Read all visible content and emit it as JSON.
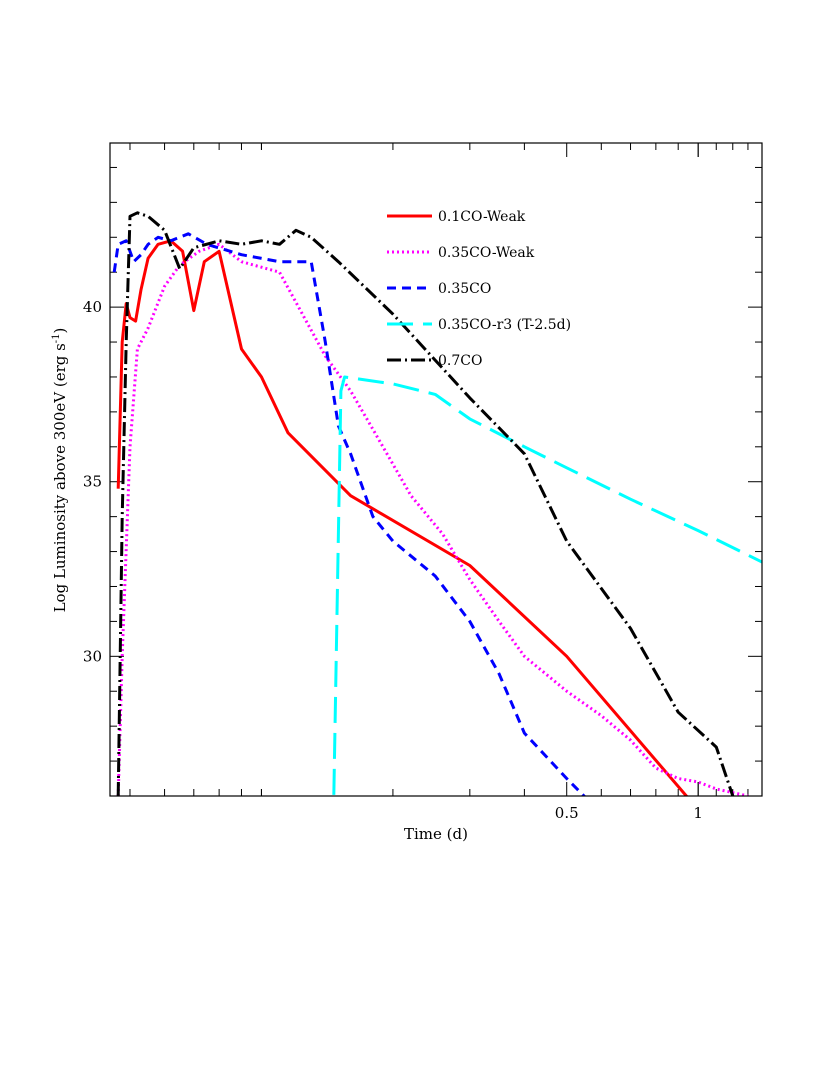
{
  "chart_data": {
    "type": "line",
    "title": "",
    "xlabel": "Time (d)",
    "ylabel": "Log Luminosity above 300eV (erg s",
    "ylabel_sup": "-1",
    "ylabel_end": ")",
    "x_scale": "log",
    "xlim": [
      0.045,
      1.4
    ],
    "ylim": [
      26,
      44.7
    ],
    "x_ticks": [
      {
        "value": 0.5,
        "label": "0.5"
      },
      {
        "value": 1,
        "label": "1"
      }
    ],
    "y_ticks": [
      {
        "value": 30,
        "label": "30"
      },
      {
        "value": 35,
        "label": "35"
      },
      {
        "value": 40,
        "label": "40"
      }
    ],
    "grid": false,
    "legend_position": "top-right",
    "series": [
      {
        "name": "0.1CO-Weak",
        "color": "#ff0000",
        "style": "solid",
        "x": [
          0.047,
          0.048,
          0.049,
          0.05,
          0.0515,
          0.053,
          0.055,
          0.058,
          0.062,
          0.066,
          0.07,
          0.074,
          0.08,
          0.09,
          0.1,
          0.115,
          0.16,
          0.3,
          0.5,
          1.1
        ],
        "y": [
          34.8,
          39.0,
          40.1,
          39.7,
          39.6,
          40.5,
          41.4,
          41.8,
          41.9,
          41.6,
          39.9,
          41.3,
          41.6,
          38.8,
          38.0,
          36.4,
          34.6,
          32.6,
          30.0,
          25.0
        ]
      },
      {
        "name": "0.35CO-Weak",
        "color": "#ff00ff",
        "style": "dotted",
        "x": [
          0.047,
          0.048,
          0.05,
          0.052,
          0.055,
          0.06,
          0.065,
          0.072,
          0.08,
          0.09,
          0.11,
          0.14,
          0.16,
          0.18,
          0.22,
          0.26,
          0.3,
          0.35,
          0.4,
          0.5,
          0.6,
          0.7,
          0.8,
          0.9,
          1.0,
          1.1,
          1.3
        ],
        "y": [
          26.0,
          30.0,
          36.0,
          38.8,
          39.4,
          40.6,
          41.2,
          41.6,
          41.8,
          41.3,
          41.0,
          38.6,
          37.6,
          36.5,
          34.6,
          33.5,
          32.2,
          31.0,
          30.0,
          29.0,
          28.3,
          27.6,
          26.8,
          26.5,
          26.4,
          26.2,
          26.0
        ]
      },
      {
        "name": "0.35CO",
        "color": "#0000ff",
        "style": "dashed",
        "x": [
          0.046,
          0.047,
          0.049,
          0.051,
          0.053,
          0.055,
          0.058,
          0.062,
          0.068,
          0.075,
          0.09,
          0.11,
          0.13,
          0.14,
          0.15,
          0.16,
          0.18,
          0.2,
          0.25,
          0.3,
          0.35,
          0.4,
          0.5,
          0.6
        ],
        "y": [
          41.0,
          41.8,
          41.9,
          41.3,
          41.5,
          41.8,
          42.0,
          41.9,
          42.1,
          41.8,
          41.5,
          41.3,
          41.3,
          39.0,
          36.6,
          35.8,
          34.0,
          33.3,
          32.3,
          31.0,
          29.5,
          27.8,
          26.5,
          25.5
        ]
      },
      {
        "name": "0.35CO-r3 (T-2.5d)",
        "color": "#00ffff",
        "style": "longdash",
        "x": [
          0.146,
          0.152,
          0.155,
          0.2,
          0.25,
          0.3,
          0.4,
          0.5,
          0.7,
          1.0,
          1.4
        ],
        "y": [
          25.0,
          37.6,
          38.0,
          37.8,
          37.5,
          36.8,
          36.0,
          35.4,
          34.5,
          33.6,
          32.7
        ]
      },
      {
        "name": "0.7CO",
        "color": "#000000",
        "style": "dashdot",
        "x": [
          0.047,
          0.048,
          0.049,
          0.05,
          0.052,
          0.055,
          0.06,
          0.065,
          0.07,
          0.08,
          0.09,
          0.1,
          0.11,
          0.12,
          0.13,
          0.15,
          0.2,
          0.3,
          0.4,
          0.5,
          0.7,
          0.9,
          1.1,
          1.2
        ],
        "y": [
          26.0,
          34.0,
          39.0,
          42.6,
          42.7,
          42.6,
          42.2,
          41.1,
          41.7,
          41.9,
          41.8,
          41.9,
          41.8,
          42.2,
          42.0,
          41.3,
          39.8,
          37.4,
          35.8,
          33.3,
          30.8,
          28.4,
          27.4,
          26.0
        ]
      }
    ]
  }
}
